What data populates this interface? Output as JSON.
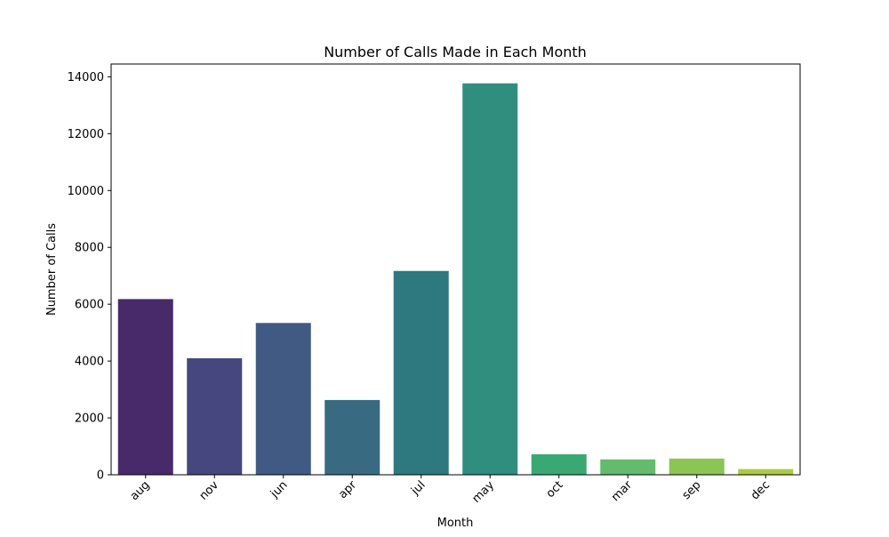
{
  "chart_data": {
    "type": "bar",
    "title": "Number of Calls Made in Each Month",
    "xlabel": "Month",
    "ylabel": "Number of Calls",
    "categories": [
      "aug",
      "nov",
      "jun",
      "apr",
      "jul",
      "may",
      "oct",
      "mar",
      "sep",
      "dec"
    ],
    "values": [
      6180,
      4100,
      5340,
      2630,
      7170,
      13770,
      720,
      540,
      570,
      200
    ],
    "colors": [
      "#482a6a",
      "#47477f",
      "#405a84",
      "#386b82",
      "#2e7880",
      "#2f8e7e",
      "#3aa873",
      "#63bb6e",
      "#8bc553",
      "#adcb3e"
    ],
    "ylim": [
      0,
      14450
    ],
    "yticks": [
      0,
      2000,
      4000,
      6000,
      8000,
      10000,
      12000,
      14000
    ],
    "ytick_labels": [
      "0",
      "2000",
      "4000",
      "6000",
      "8000",
      "10000",
      "12000",
      "14000"
    ],
    "xtick_rotation_deg": 45,
    "grid": false,
    "legend": "none"
  }
}
